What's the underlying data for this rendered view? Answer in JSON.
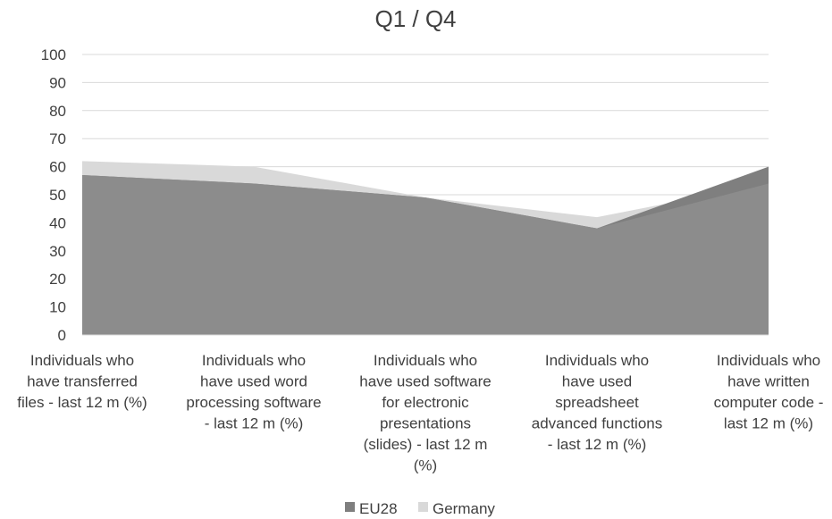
{
  "chart_data": {
    "type": "area",
    "title": "Q1 / Q4",
    "xlabel": "",
    "ylabel": "",
    "ylim": [
      0,
      100
    ],
    "yticks": [
      0,
      10,
      20,
      30,
      40,
      50,
      60,
      70,
      80,
      90,
      100
    ],
    "grid": true,
    "legend_position": "bottom",
    "categories": [
      [
        "Individuals who",
        "have transferred",
        "files - last 12 m (%)"
      ],
      [
        "Individuals who",
        "have used word",
        "processing software",
        "- last 12 m (%)"
      ],
      [
        "Individuals who",
        "have used software",
        "for electronic",
        "presentations",
        "(slides) - last 12 m",
        "(%)"
      ],
      [
        "Individuals who",
        "have used",
        "spreadsheet",
        "advanced functions",
        "- last 12 m (%)"
      ],
      [
        "Individuals who",
        "have written",
        "computer code -",
        "last 12 m (%)"
      ]
    ],
    "series": [
      {
        "name": "EU28",
        "values": [
          57,
          54,
          49,
          38,
          60
        ],
        "color": "#7f7f7f"
      },
      {
        "name": "Germany",
        "values": [
          62,
          60,
          49,
          42,
          54
        ],
        "color": "#d9d9d9"
      }
    ],
    "overlap_color": "#8c8c8c"
  }
}
